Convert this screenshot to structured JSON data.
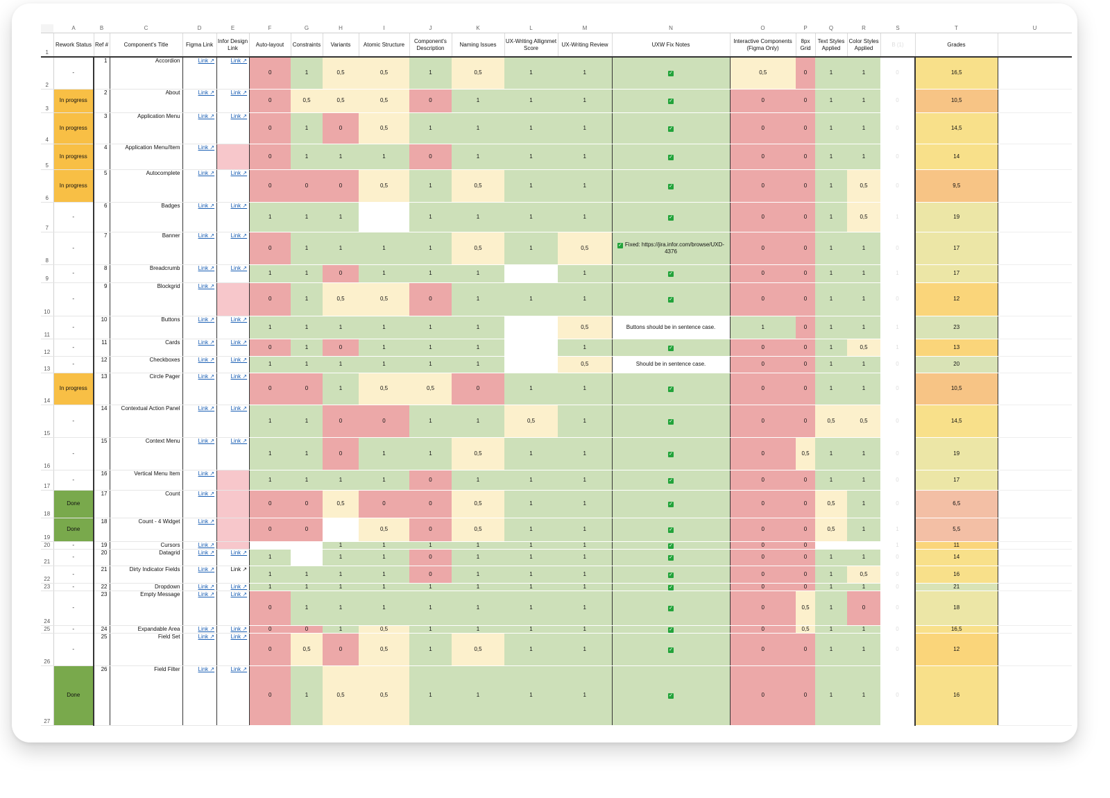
{
  "column_letters": [
    "A",
    "B",
    "C",
    "D",
    "E",
    "F",
    "G",
    "H",
    "I",
    "J",
    "K",
    "L",
    "M",
    "N",
    "O",
    "P",
    "Q",
    "R",
    "S",
    "T",
    "U"
  ],
  "headers": {
    "rework_status": "Rework Status",
    "ref": "Ref #",
    "title": "Component's Title",
    "figma": "Figma Link",
    "infor": "Infor Design Link",
    "auto_layout": "Auto-layout",
    "constraints": "Constraints",
    "variants": "Variants",
    "atomic": "Atomic Structure",
    "description": "Component's Description",
    "naming": "Naming Issues",
    "uxw_score": "UX-Writing Allignmet Score",
    "uxw_review": "UX-Writing Review",
    "uxw_notes": "UXW Fix Notes",
    "interactive": "Interactive Components (Figma Only)",
    "grid": "8px Grid",
    "text_styles": "Text Styles Applied",
    "color_styles": "Color Styles Applied",
    "s_col": "B (1)",
    "grades": "Grades"
  },
  "link_label": "Link ↗",
  "status_colors": {
    "in_progress": "#f8bf45",
    "done": "#79a94c"
  },
  "score_colors": {
    "zero": "#eca8a8",
    "half": "#fcf0cc",
    "one": "#cde0b9"
  },
  "rows": [
    {
      "row": 2,
      "status": "-",
      "ref": "1",
      "title": "Accordion",
      "figma": "Link ↗",
      "infor": "Link ↗",
      "F": "0",
      "G": "1",
      "H": "0,5",
      "I": "0,5",
      "J": "1",
      "K": "0,5",
      "L": "1",
      "M": "1",
      "N": "check",
      "O": "0,5",
      "P": "0",
      "Q": "1",
      "R": "1",
      "S": "0",
      "T": "16,5"
    },
    {
      "row": 3,
      "status": "In progress",
      "ref": "2",
      "title": "About",
      "figma": "Link ↗",
      "infor": "Link ↗",
      "F": "0",
      "G": "0,5",
      "H": "0,5",
      "I": "0,5",
      "J": "0",
      "K": "1",
      "L": "1",
      "M": "1",
      "N": "check",
      "O": "0",
      "P": "0",
      "Q": "1",
      "R": "1",
      "S": "0",
      "T": "10,5"
    },
    {
      "row": 4,
      "status": "In progress",
      "ref": "3",
      "title": "Application Menu",
      "figma": "Link ↗",
      "infor": "Link ↗",
      "F": "0",
      "G": "1",
      "H": "0",
      "I": "0,5",
      "J": "1",
      "K": "1",
      "L": "1",
      "M": "1",
      "N": "check",
      "O": "0",
      "P": "0",
      "Q": "1",
      "R": "1",
      "S": "0",
      "T": "14,5"
    },
    {
      "row": 5,
      "status": "In progress",
      "ref": "4",
      "title": "Application Menu/Item",
      "figma": "Link ↗",
      "infor": "",
      "F": "0",
      "G": "1",
      "H": "1",
      "I": "1",
      "J": "0",
      "K": "1",
      "L": "1",
      "M": "1",
      "N": "check",
      "O": "0",
      "P": "0",
      "Q": "1",
      "R": "1",
      "S": "0",
      "T": "14"
    },
    {
      "row": 6,
      "status": "In progress",
      "ref": "5",
      "title": "Autocomplete",
      "figma": "Link ↗",
      "infor": "Link ↗",
      "F": "0",
      "G": "0",
      "H": "0",
      "I": "0,5",
      "J": "1",
      "K": "0,5",
      "L": "1",
      "M": "1",
      "N": "check",
      "O": "0",
      "P": "0",
      "Q": "1",
      "R": "0,5",
      "S": "0",
      "T": "9,5"
    },
    {
      "row": 7,
      "status": "-",
      "ref": "6",
      "title": "Badges",
      "figma": "Link ↗",
      "infor": "Link ↗",
      "F": "1",
      "G": "1",
      "H": "1",
      "I": "",
      "J": "1",
      "K": "1",
      "L": "1",
      "M": "1",
      "N": "check",
      "O": "0",
      "P": "0",
      "Q": "1",
      "R": "0,5",
      "S": "1",
      "T": "19"
    },
    {
      "row": 8,
      "status": "-",
      "ref": "7",
      "title": "Banner",
      "figma": "Link ↗",
      "infor": "Link ↗",
      "F": "0",
      "G": "1",
      "H": "1",
      "I": "1",
      "J": "1",
      "K": "0,5",
      "L": "1",
      "M": "0,5",
      "N": "Fixed: https://jira.infor.com/browse/UXD-4376",
      "O": "0",
      "P": "0",
      "Q": "1",
      "R": "1",
      "S": "0",
      "T": "17"
    },
    {
      "row": 9,
      "status": "-",
      "ref": "8",
      "title": "Breadcrumb",
      "figma": "Link ↗",
      "infor": "Link ↗",
      "F": "1",
      "G": "1",
      "H": "0",
      "I": "1",
      "J": "1",
      "K": "1",
      "L": "",
      "M": "1",
      "N": "check",
      "O": "0",
      "P": "0",
      "Q": "1",
      "R": "1",
      "S": "1",
      "T": "17"
    },
    {
      "row": 10,
      "status": "-",
      "ref": "9",
      "title": "Blockgrid",
      "figma": "Link ↗",
      "infor": "",
      "F": "0",
      "G": "1",
      "H": "0,5",
      "I": "0,5",
      "J": "0",
      "K": "1",
      "L": "1",
      "M": "1",
      "N": "check",
      "O": "0",
      "P": "0",
      "Q": "1",
      "R": "1",
      "S": "0",
      "T": "12"
    },
    {
      "row": 11,
      "status": "-",
      "ref": "10",
      "title": "Buttons",
      "figma": "Link ↗",
      "infor": "Link ↗",
      "F": "1",
      "G": "1",
      "H": "1",
      "I": "1",
      "J": "1",
      "K": "1",
      "L": "",
      "M": "0,5",
      "N": "Buttons should be in sentence case.",
      "O": "1",
      "P": "0",
      "Q": "1",
      "R": "1",
      "S": "1",
      "T": "23"
    },
    {
      "row": 12,
      "status": "-",
      "ref": "11",
      "title": "Cards",
      "figma": "Link ↗",
      "infor": "Link ↗",
      "F": "0",
      "G": "1",
      "H": "0",
      "I": "1",
      "J": "1",
      "K": "1",
      "L": "",
      "M": "1",
      "N": "check",
      "O": "0",
      "P": "0",
      "Q": "1",
      "R": "0,5",
      "S": "1",
      "T": "13"
    },
    {
      "row": 13,
      "status": "-",
      "ref": "12",
      "title": "Checkboxes",
      "figma": "Link ↗",
      "infor": "Link ↗",
      "F": "1",
      "G": "1",
      "H": "1",
      "I": "1",
      "J": "1",
      "K": "1",
      "L": "",
      "M": "0,5",
      "N": "Should be in sentence case.",
      "O": "0",
      "P": "0",
      "Q": "1",
      "R": "1",
      "S": "0",
      "T": "20"
    },
    {
      "row": 14,
      "status": "In progress",
      "ref": "13",
      "title": "Circle Pager",
      "figma": "Link ↗",
      "infor": "Link ↗",
      "F": "0",
      "G": "0",
      "H": "1",
      "I": "0,5",
      "J": "0,5",
      "K": "0",
      "L": "1",
      "M": "1",
      "N": "check",
      "O": "0",
      "P": "0",
      "Q": "1",
      "R": "1",
      "S": "0",
      "T": "10,5"
    },
    {
      "row": 15,
      "status": "-",
      "ref": "14",
      "title": "Contextual Action Panel",
      "figma": "Link ↗",
      "infor": "Link ↗",
      "F": "1",
      "G": "1",
      "H": "0",
      "I": "0",
      "J": "1",
      "K": "1",
      "L": "0,5",
      "M": "1",
      "N": "check",
      "O": "0",
      "P": "0",
      "Q": "0,5",
      "R": "0,5",
      "S": "0",
      "T": "14,5"
    },
    {
      "row": 16,
      "status": "-",
      "ref": "15",
      "title": "Context Menu",
      "figma": "Link ↗",
      "infor": "Link ↗",
      "F": "1",
      "G": "1",
      "H": "0",
      "I": "1",
      "J": "1",
      "K": "0,5",
      "L": "1",
      "M": "1",
      "N": "check",
      "O": "0",
      "P": "0,5",
      "Q": "1",
      "R": "1",
      "S": "0",
      "T": "19"
    },
    {
      "row": 17,
      "status": "-",
      "ref": "16",
      "title": "Vertical Menu Item",
      "figma": "Link ↗",
      "infor": "",
      "F": "1",
      "G": "1",
      "H": "1",
      "I": "1",
      "J": "0",
      "K": "1",
      "L": "1",
      "M": "1",
      "N": "check",
      "O": "0",
      "P": "0",
      "Q": "1",
      "R": "1",
      "S": "0",
      "T": "17"
    },
    {
      "row": 18,
      "status": "Done",
      "ref": "17",
      "title": "Count",
      "figma": "Link ↗",
      "infor": "",
      "F": "0",
      "G": "0",
      "H": "0,5",
      "I": "0",
      "J": "0",
      "K": "0,5",
      "L": "1",
      "M": "1",
      "N": "check",
      "O": "0",
      "P": "0",
      "Q": "0,5",
      "R": "1",
      "S": "0",
      "T": "6,5"
    },
    {
      "row": 19,
      "status": "Done",
      "ref": "18",
      "title": "Count - 4 Widget",
      "figma": "Link ↗",
      "infor": "",
      "F": "0",
      "G": "0",
      "H": "",
      "I": "0,5",
      "J": "0",
      "K": "0,5",
      "L": "1",
      "M": "1",
      "N": "check",
      "O": "0",
      "P": "0",
      "Q": "0,5",
      "R": "1",
      "S": "1",
      "T": "5,5"
    },
    {
      "row": 20,
      "status": "-",
      "ref": "19",
      "title": "Cursors",
      "figma": "Link ↗",
      "infor": "",
      "F": "",
      "G": "",
      "H": "1",
      "I": "1",
      "J": "1",
      "K": "1",
      "L": "1",
      "M": "1",
      "N": "check",
      "O": "0",
      "P": "0",
      "Q": "",
      "R": "",
      "S": "1",
      "T": "11"
    },
    {
      "row": 21,
      "status": "-",
      "ref": "20",
      "title": "Datagrid",
      "figma": "Link ↗",
      "infor": "Link ↗",
      "F": "1",
      "G": "",
      "H": "1",
      "I": "1",
      "J": "0",
      "K": "1",
      "L": "1",
      "M": "1",
      "N": "check",
      "O": "0",
      "P": "0",
      "Q": "1",
      "R": "1",
      "S": "0",
      "T": "14"
    },
    {
      "row": 22,
      "status": "-",
      "ref": "21",
      "title": "Dirty Indicator Fields",
      "figma": "Link ↗",
      "infor": "Link ↗",
      "infor_plain": true,
      "F": "1",
      "G": "1",
      "H": "1",
      "I": "1",
      "J": "0",
      "K": "1",
      "L": "1",
      "M": "1",
      "N": "check",
      "O": "0",
      "P": "0",
      "Q": "1",
      "R": "0,5",
      "S": "0",
      "T": "16"
    },
    {
      "row": 23,
      "status": "-",
      "ref": "22",
      "title": "Dropdown",
      "figma": "Link ↗",
      "infor": "Link ↗",
      "F": "1",
      "G": "1",
      "H": "1",
      "I": "1",
      "J": "1",
      "K": "1",
      "L": "1",
      "M": "1",
      "N": "check",
      "O": "0",
      "P": "0",
      "Q": "1",
      "R": "1",
      "S": "0",
      "T": "21"
    },
    {
      "row": 24,
      "status": "-",
      "ref": "23",
      "title": "Empty Message",
      "figma": "Link ↗",
      "infor": "Link ↗",
      "F": "0",
      "G": "1",
      "H": "1",
      "I": "1",
      "J": "1",
      "K": "1",
      "L": "1",
      "M": "1",
      "N": "check",
      "O": "0",
      "P": "0,5",
      "Q": "1",
      "R": "0",
      "S": "0",
      "T": "18"
    },
    {
      "row": 25,
      "status": "-",
      "ref": "24",
      "title": "Expandable Area",
      "figma": "Link ↗",
      "infor": "Link ↗",
      "F": "0",
      "G": "0",
      "H": "1",
      "I": "0,5",
      "J": "1",
      "K": "1",
      "L": "1",
      "M": "1",
      "N": "check",
      "O": "0",
      "P": "0,5",
      "Q": "1",
      "R": "1",
      "S": "0",
      "T": "16,5"
    },
    {
      "row": 26,
      "status": "-",
      "ref": "25",
      "title": "Field Set",
      "figma": "Link ↗",
      "infor": "Link ↗",
      "F": "0",
      "G": "0,5",
      "H": "0",
      "I": "0,5",
      "J": "1",
      "K": "0,5",
      "L": "1",
      "M": "1",
      "N": "check",
      "O": "0",
      "P": "0",
      "Q": "1",
      "R": "1",
      "S": "0",
      "T": "12"
    },
    {
      "row": 27,
      "status": "Done",
      "ref": "26",
      "title": "Field Filter",
      "figma": "Link ↗",
      "infor": "Link ↗",
      "F": "0",
      "G": "1",
      "H": "0,5",
      "I": "0,5",
      "J": "1",
      "K": "1",
      "L": "1",
      "M": "1",
      "N": "check",
      "O": "0",
      "P": "0",
      "Q": "1",
      "R": "1",
      "S": "0",
      "T": "16"
    }
  ]
}
